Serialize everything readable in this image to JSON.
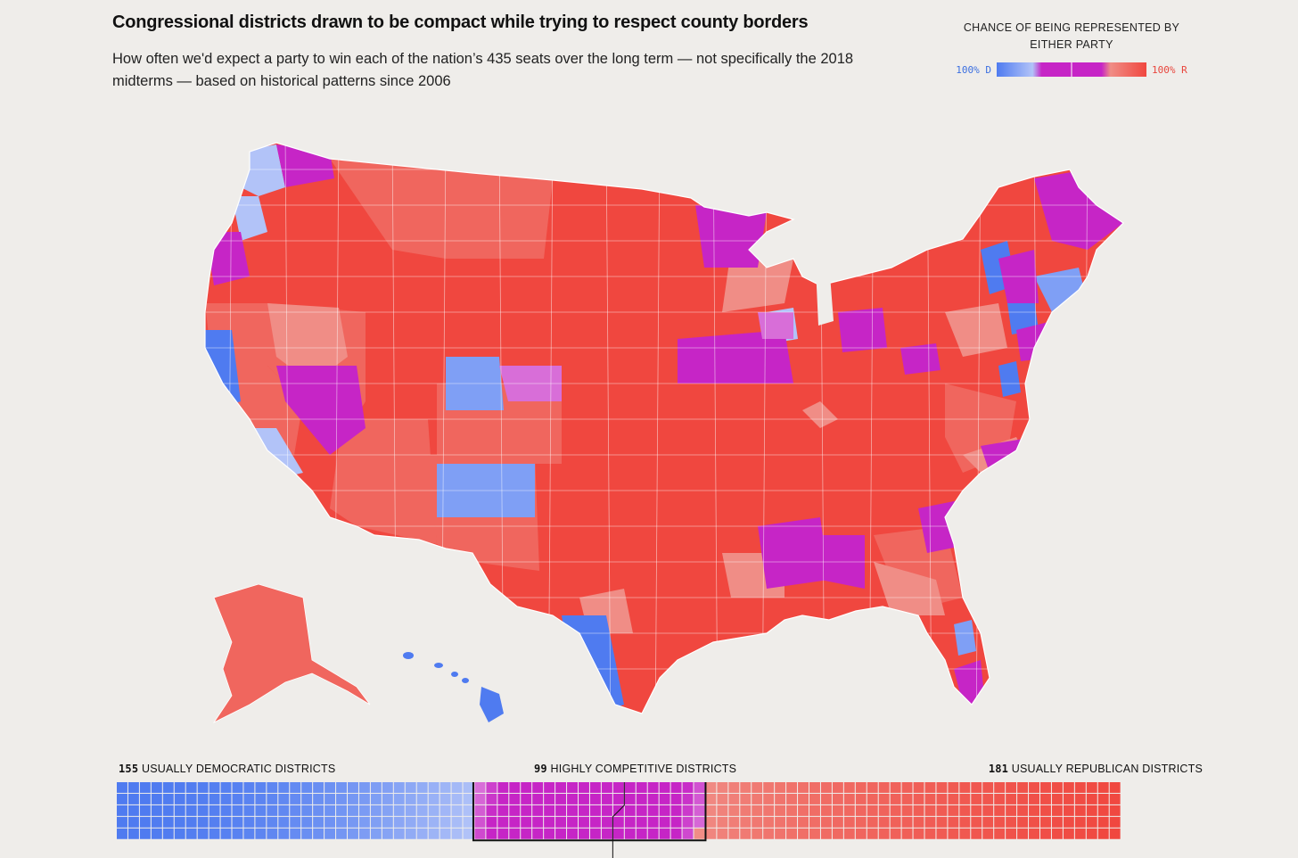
{
  "header": {
    "title": "Congressional districts drawn to be compact while trying to respect county borders",
    "subtitle": "How often we'd expect a party to win each of the nation’s 435 seats over the long term — not specifically the 2018 midterms — based on historical patterns since 2006"
  },
  "legend": {
    "title": "CHANCE OF BEING REPRESENTED BY EITHER PARTY",
    "left_label": "100% D",
    "right_label": "100% R"
  },
  "colors": {
    "dem_strong": "#4f7bf0",
    "dem_lean": "#7f9ff5",
    "dem_light": "#b2c3f8",
    "competitive": "#c625c6",
    "competitive_light": "#d86ed8",
    "rep_light": "#f08d86",
    "rep_lean": "#f0665e",
    "rep_strong": "#f0473f",
    "background": "#efedea"
  },
  "summary": {
    "dem_count": "155",
    "dem_label": "USUALLY DEMOCRATIC DISTRICTS",
    "comp_count": "99",
    "comp_label": "HIGHLY COMPETITIVE DISTRICTS",
    "rep_count": "181",
    "rep_label": "USUALLY REPUBLICAN DISTRICTS"
  },
  "seat_counts": {
    "dem": 155,
    "competitive": 99,
    "rep": 181,
    "total": 435
  }
}
